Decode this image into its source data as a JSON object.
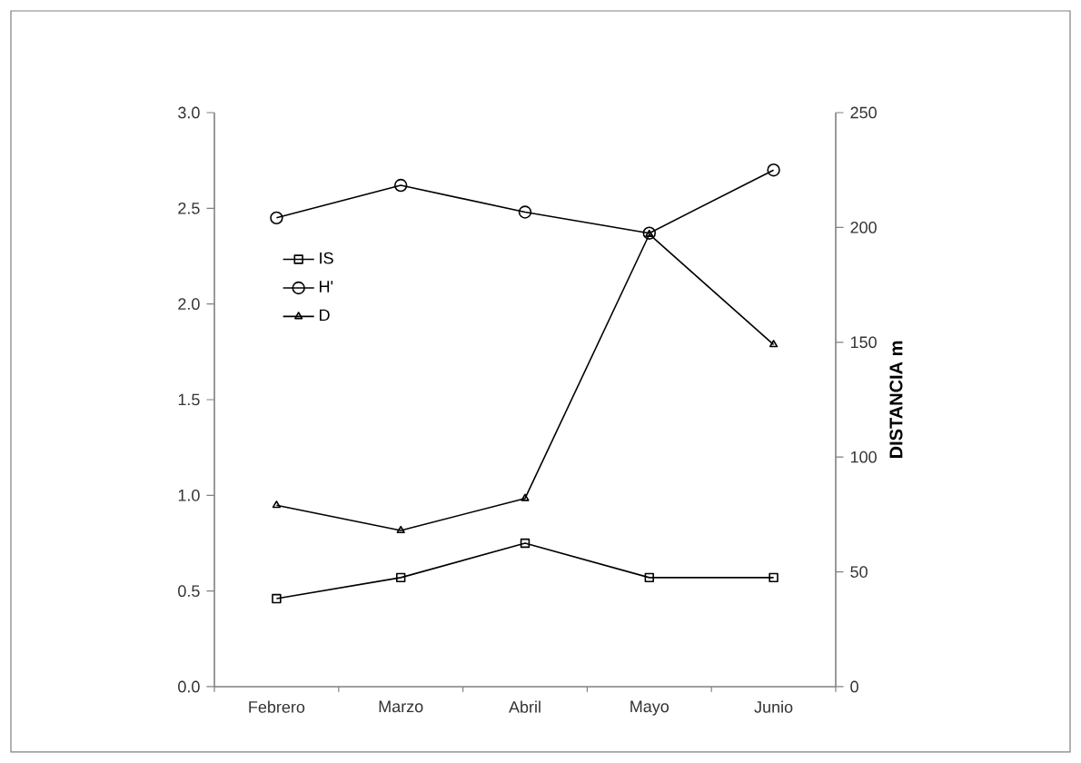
{
  "chart_data": {
    "type": "line",
    "y2label": "DISTANCIA m",
    "categories": [
      "Febrero",
      "Marzo",
      "Abril",
      "Mayo",
      "Junio"
    ],
    "series": [
      {
        "name": "IS",
        "color": "#000000",
        "marker": "square",
        "values": [
          0.46,
          0.57,
          0.75,
          0.57,
          0.57
        ]
      },
      {
        "name": "H'",
        "color": "#000000",
        "marker": "circle",
        "values": [
          2.45,
          2.62,
          2.48,
          2.37,
          2.7
        ]
      },
      {
        "name": "D",
        "color": "#000000",
        "marker": "triangle",
        "axis": "y2",
        "values": [
          79,
          68,
          82,
          197,
          149
        ]
      }
    ],
    "ylim": [
      0,
      3
    ],
    "yticks": [
      {
        "value": 0,
        "label": "0.0"
      },
      {
        "value": 0.5,
        "label": "0.5"
      },
      {
        "value": 1,
        "label": "1.0"
      },
      {
        "value": 1.5,
        "label": "1.5"
      },
      {
        "value": 2,
        "label": "2.0"
      },
      {
        "value": 2.5,
        "label": "2.5"
      },
      {
        "value": 3,
        "label": "3.0"
      }
    ],
    "y2lim": [
      0,
      250
    ],
    "y2ticks": [
      0,
      50,
      100,
      150,
      200,
      250
    ],
    "grid": false,
    "legend": "top left",
    "line_style": "solid"
  }
}
